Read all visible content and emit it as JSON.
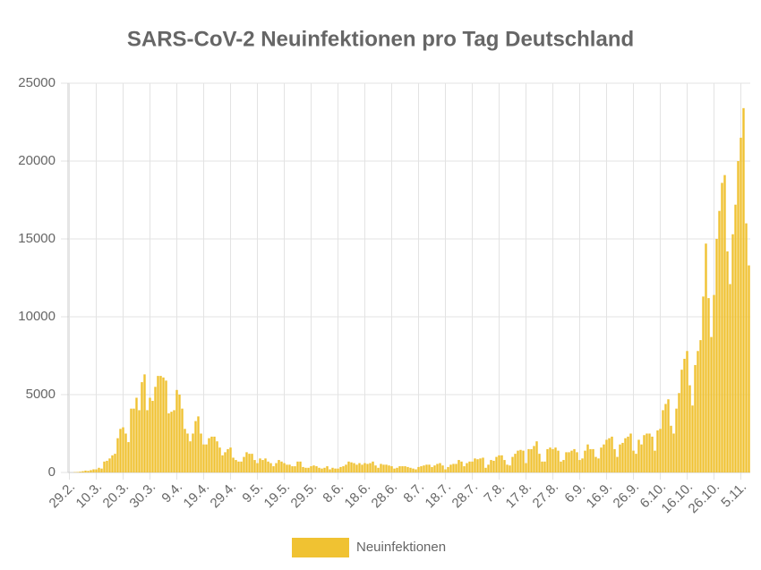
{
  "chart_data": {
    "type": "bar",
    "title": "SARS-CoV-2 Neuinfektionen pro Tag Deutschland",
    "categories": [
      "29.2.",
      null,
      null,
      null,
      null,
      null,
      null,
      null,
      null,
      null,
      "10.3.",
      null,
      null,
      null,
      null,
      null,
      null,
      null,
      null,
      null,
      "20.3.",
      null,
      null,
      null,
      null,
      null,
      null,
      null,
      null,
      null,
      "30.3.",
      null,
      null,
      null,
      null,
      null,
      null,
      null,
      null,
      null,
      "9.4.",
      null,
      null,
      null,
      null,
      null,
      null,
      null,
      null,
      null,
      "19.4.",
      null,
      null,
      null,
      null,
      null,
      null,
      null,
      null,
      null,
      "29.4.",
      null,
      null,
      null,
      null,
      null,
      null,
      null,
      null,
      null,
      "9.5.",
      null,
      null,
      null,
      null,
      null,
      null,
      null,
      null,
      null,
      "19.5.",
      null,
      null,
      null,
      null,
      null,
      null,
      null,
      null,
      null,
      "29.5.",
      null,
      null,
      null,
      null,
      null,
      null,
      null,
      null,
      null,
      "8.6.",
      null,
      null,
      null,
      null,
      null,
      null,
      null,
      null,
      null,
      "18.6.",
      null,
      null,
      null,
      null,
      null,
      null,
      null,
      null,
      null,
      "28.6.",
      null,
      null,
      null,
      null,
      null,
      null,
      null,
      null,
      null,
      "8.7.",
      null,
      null,
      null,
      null,
      null,
      null,
      null,
      null,
      null,
      "18.7.",
      null,
      null,
      null,
      null,
      null,
      null,
      null,
      null,
      null,
      "28.7.",
      null,
      null,
      null,
      null,
      null,
      null,
      null,
      null,
      null,
      "7.8.",
      null,
      null,
      null,
      null,
      null,
      null,
      null,
      null,
      null,
      "17.8.",
      null,
      null,
      null,
      null,
      null,
      null,
      null,
      null,
      null,
      "27.8.",
      null,
      null,
      null,
      null,
      null,
      null,
      null,
      null,
      null,
      "6.9.",
      null,
      null,
      null,
      null,
      null,
      null,
      null,
      null,
      null,
      "16.9.",
      null,
      null,
      null,
      null,
      null,
      null,
      null,
      null,
      null,
      "26.9.",
      null,
      null,
      null,
      null,
      null,
      null,
      null,
      null,
      null,
      "6.10.",
      null,
      null,
      null,
      null,
      null,
      null,
      null,
      null,
      null,
      "16.10.",
      null,
      null,
      null,
      null,
      null,
      null,
      null,
      null,
      null,
      "26.10.",
      null,
      null,
      null,
      null,
      null,
      null,
      null,
      null,
      null,
      "5.11.",
      null,
      null,
      null
    ],
    "series": [
      {
        "name": "Neuinfektionen",
        "color": "#f0c232",
        "values": [
          0,
          0,
          20,
          30,
          50,
          80,
          120,
          100,
          150,
          200,
          200,
          300,
          250,
          700,
          750,
          900,
          1100,
          1200,
          2200,
          2800,
          2900,
          2500,
          1950,
          4100,
          4100,
          4800,
          4000,
          5800,
          6300,
          4000,
          4800,
          4600,
          5500,
          6200,
          6200,
          6100,
          5900,
          3800,
          3900,
          4000,
          5300,
          5000,
          4100,
          2800,
          2500,
          2000,
          2500,
          3300,
          3600,
          2500,
          1800,
          1800,
          2200,
          2300,
          2300,
          2000,
          1600,
          1100,
          1300,
          1500,
          1600,
          950,
          800,
          700,
          700,
          1000,
          1300,
          1200,
          1200,
          800,
          600,
          900,
          800,
          900,
          700,
          600,
          400,
          600,
          800,
          700,
          600,
          500,
          500,
          400,
          400,
          700,
          700,
          350,
          300,
          300,
          400,
          450,
          400,
          300,
          250,
          300,
          400,
          200,
          300,
          250,
          250,
          350,
          400,
          500,
          700,
          650,
          600,
          500,
          600,
          500,
          600,
          550,
          600,
          700,
          450,
          300,
          550,
          500,
          500,
          450,
          400,
          250,
          300,
          400,
          400,
          400,
          350,
          300,
          250,
          200,
          350,
          400,
          450,
          500,
          500,
          350,
          450,
          550,
          600,
          450,
          200,
          350,
          500,
          550,
          550,
          800,
          700,
          400,
          600,
          700,
          700,
          900,
          850,
          900,
          950,
          300,
          500,
          800,
          750,
          1000,
          1100,
          1100,
          800,
          500,
          450,
          1000,
          1200,
          1400,
          1450,
          1400,
          600,
          1500,
          1500,
          1700,
          2000,
          1200,
          700,
          700,
          1500,
          1600,
          1500,
          1600,
          1400,
          700,
          800,
          1300,
          1300,
          1400,
          1500,
          1300,
          800,
          900,
          1400,
          1800,
          1500,
          1500,
          1000,
          900,
          1600,
          1800,
          2100,
          2200,
          2300,
          1500,
          1000,
          1800,
          1900,
          2200,
          2300,
          2500,
          1400,
          1200,
          2100,
          1800,
          2400,
          2500,
          2500,
          2300,
          1400,
          2700,
          2800,
          4000,
          4400,
          4700,
          3000,
          2500,
          4100,
          5100,
          6600,
          7300,
          7800,
          5600,
          4300,
          6900,
          7800,
          8500,
          11300,
          14700,
          11200,
          8700,
          11400,
          15000,
          16800,
          18600,
          19100,
          14200,
          12100,
          15300,
          17200,
          20000,
          21500,
          23400,
          16000,
          13300
        ]
      }
    ],
    "ylim": [
      0,
      25000
    ],
    "yticks": [
      0,
      5000,
      10000,
      15000,
      20000,
      25000
    ],
    "grid": true,
    "legend": "bottom"
  }
}
